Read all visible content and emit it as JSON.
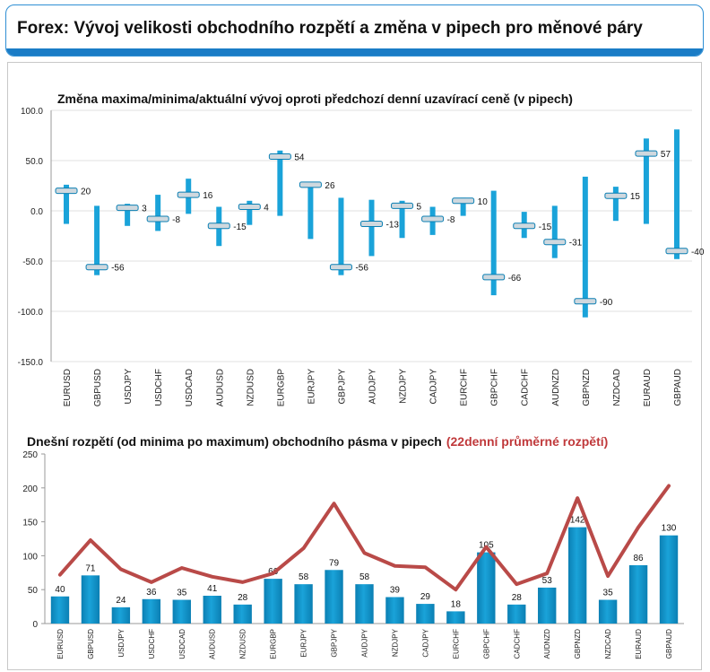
{
  "header": {
    "title": "Forex: Vývoj velikosti obchodního rozpětí a změna v pipech pro měnové páry"
  },
  "colors": {
    "bar": "#1aa3d9",
    "bar_dark": "#0b7fb3",
    "marker": "#cfd8de",
    "line": "#b94a48",
    "axis": "#9a9a9a",
    "grid": "#e0e0e0",
    "title_red": "#c0393b"
  },
  "chart_data": [
    {
      "type": "bar",
      "subtype": "range-with-marker",
      "title": "Změna maxima/minima/aktuální vývoj oproti předchozí denní uzavírací ceně (v pipech)",
      "xlabel": "",
      "ylabel": "",
      "ylim": [
        -150,
        100
      ],
      "yticks": [
        100,
        50,
        0,
        -50,
        -100,
        -150
      ],
      "ytick_labels": [
        "100.0",
        "50.0",
        "0.0",
        "-50.0",
        "-100.0",
        "-150.0"
      ],
      "grid": true,
      "categories": [
        "EURUSD",
        "GBPUSD",
        "USDJPY",
        "USDCHF",
        "USDCAD",
        "AUDUSD",
        "NZDUSD",
        "EURGBP",
        "EURJPY",
        "GBPJPY",
        "AUDJPY",
        "NZDJPY",
        "CADJPY",
        "EURCHF",
        "GBPCHF",
        "CADCHF",
        "AUDNZD",
        "GBPNZD",
        "NZDCAD",
        "EURAUD",
        "GBPAUD"
      ],
      "series": [
        {
          "name": "",
          "role": "high",
          "values": [
            26,
            5,
            7,
            16,
            32,
            4,
            10,
            60,
            28,
            13,
            11,
            10,
            4,
            13,
            20,
            -1,
            5,
            34,
            24,
            72,
            81
          ]
        },
        {
          "name": "",
          "role": "low",
          "values": [
            -13,
            -64,
            -15,
            -20,
            -3,
            -35,
            -14,
            -5,
            -28,
            -64,
            -45,
            -27,
            -24,
            -5,
            -84,
            -27,
            -47,
            -106,
            -10,
            -13,
            -48
          ]
        },
        {
          "name": "",
          "role": "current",
          "values": [
            20,
            -56,
            3,
            -8,
            16,
            -15,
            4,
            54,
            26,
            -56,
            -13,
            5,
            -8,
            10,
            -66,
            -15,
            -31,
            -90,
            15,
            57,
            -40
          ]
        }
      ],
      "data_labels": [
        "20",
        "-56",
        "3",
        "-8",
        "16",
        "-15",
        "4",
        "54",
        "26",
        "-56",
        "-13",
        "5",
        "-8",
        "10",
        "-66",
        "-15",
        "-31",
        "-90",
        "15",
        "57",
        "-40"
      ]
    },
    {
      "type": "bar",
      "title": "Dnešní rozpětí (od minima po maximum) obchodního pásma v pipech",
      "title_suffix": "(22denní průměrné rozpětí)",
      "xlabel": "",
      "ylabel": "",
      "ylim": [
        0,
        250
      ],
      "yticks": [
        0,
        50,
        100,
        150,
        200,
        250
      ],
      "ytick_labels": [
        "0",
        "50",
        "100",
        "150",
        "200",
        "250"
      ],
      "grid": false,
      "categories": [
        "EURUSD",
        "GBPUSD",
        "USDJPY",
        "USDCHF",
        "USDCAD",
        "AUDUSD",
        "NZDUSD",
        "EURGBP",
        "EURJPY",
        "GBPJPY",
        "AUDJPY",
        "NZDJPY",
        "CADJPY",
        "EURCHF",
        "GBPCHF",
        "CADCHF",
        "AUDNZD",
        "GBPNZD",
        "NZDCAD",
        "EURAUD",
        "GBPAUD"
      ],
      "series": [
        {
          "name": "",
          "type": "bar",
          "values": [
            40,
            71,
            24,
            36,
            35,
            41,
            28,
            66,
            58,
            79,
            58,
            39,
            29,
            18,
            105,
            28,
            53,
            142,
            35,
            86,
            130
          ]
        },
        {
          "name": "22denní průměrné rozpětí",
          "type": "line",
          "values": [
            72,
            123,
            80,
            61,
            82,
            69,
            61,
            74,
            111,
            177,
            104,
            85,
            83,
            50,
            113,
            58,
            74,
            185,
            70,
            142,
            203
          ]
        }
      ],
      "data_labels": [
        "40",
        "71",
        "24",
        "36",
        "35",
        "41",
        "28",
        "66",
        "58",
        "79",
        "58",
        "39",
        "29",
        "18",
        "105",
        "28",
        "53",
        "142",
        "35",
        "86",
        "130"
      ]
    }
  ]
}
